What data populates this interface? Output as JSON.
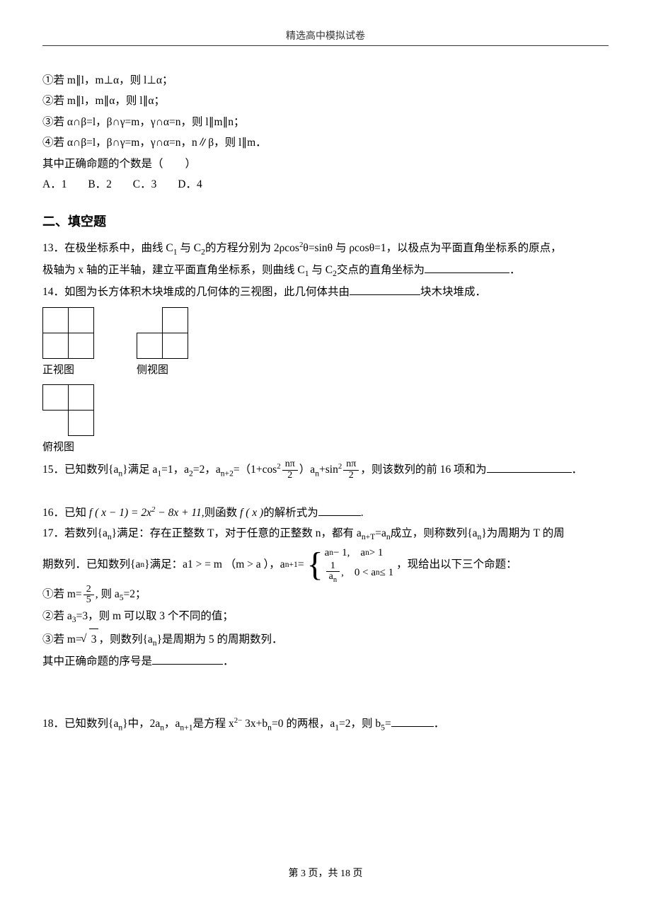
{
  "page": {
    "header": "精选高中模拟试卷",
    "footer_prefix": "第",
    "footer_page": "3",
    "footer_mid": "页，共",
    "footer_total": "18",
    "footer_suffix": "页"
  },
  "q12": {
    "s1": "①若 m∥l，m⊥α，则 l⊥α；",
    "s2": "②若 m∥l，m∥α，则 l∥α；",
    "s3": "③若 α∩β=l，β∩γ=m，γ∩α=n，则 l∥m∥n；",
    "s4": "④若 α∩β=l，β∩γ=m，γ∩α=n，n∥β，则 l∥m．",
    "s5": "其中正确命题的个数是（　　）",
    "optA": "A．1",
    "optB": "B．2",
    "optC": "C．3",
    "optD": "D．4"
  },
  "section2": "二、填空题",
  "q13": {
    "text_a": "13．在极坐标系中，曲线 C",
    "sub1": "1",
    "text_b": " 与 C",
    "sub2": "2",
    "text_c": "的方程分别为 2ρcos",
    "sup2a": "2",
    "text_d": "θ=sinθ 与 ρcosθ=1，以极点为平面直角坐标系的原点，",
    "line2a": "极轴为 x 轴的正半轴，建立平面直角坐标系，则曲线 C",
    "line2b": " 与 C",
    "line2c": "交点的直角坐标为",
    "tail": "．"
  },
  "q14": {
    "text": "14．如图为长方体积木块堆成的几何体的三视图，此几何体共由",
    "tail": "块木块堆成．",
    "label_front": "正视图",
    "label_side": "侧视图",
    "label_top": "俯视图",
    "front_grid": [
      [
        1,
        1
      ],
      [
        1,
        1
      ]
    ],
    "side_grid": [
      [
        0,
        1
      ],
      [
        1,
        1
      ]
    ],
    "top_grid": [
      [
        1,
        1
      ],
      [
        0,
        1
      ]
    ]
  },
  "q15": {
    "pre": "15．已知数列{a",
    "sub_n": "n",
    "mid1": "}满足 a",
    "s1": "1",
    "eq1": "=1，a",
    "s2": "2",
    "eq2": "=2，a",
    "s3": "n+2",
    "eq3": "=（1+cos",
    "sup2": "2",
    "frac1_num": "nπ",
    "frac1_den": "2",
    "mid2": "）a",
    "s4": "n",
    "mid3": "+sin",
    "frac2_num": "nπ",
    "frac2_den": "2",
    "tail": "，则该数列的前 16 项和为",
    "period": "．"
  },
  "q16": {
    "pre": "16．已知",
    "f1": "f ( x − 1) = 2x",
    "sup2": "2",
    "mid": " − 8x + 11,",
    "mid2": "则函数",
    "f2": "f ( x )",
    "tail": "的解析式为",
    "tail2": "."
  },
  "q17": {
    "l1a": "17．若数列{a",
    "sub_n": "n",
    "l1b": "}满足：存在正整数 T，对于任意的正整数 n，都有 a",
    "sub_nT": "n+T",
    "l1c": "=a",
    "l1d": "成立，则称数列{a",
    "l1e": "}为周期为 T 的周",
    "l2a": "期数列．已知数列{a",
    "l2b": "}满足：a1 > = m （m > a ），a",
    "sub_n1": "n+1",
    "l2c": "=",
    "case1_a": "a",
    "case1_b": " − 1,　a",
    "case1_c": " > 1",
    "case2_num": "1",
    "case2_den": "a",
    "case2_b": ",　0 < a",
    "case2_c": " ≤ 1",
    "l2d": "，现给出以下三个命题：",
    "s1a": "①若  m=",
    "s1_num": "2",
    "s1_den": "5",
    "s1b": ",  则 a",
    "s1_sub": "5",
    "s1c": "=2；",
    "s2": "②若  a",
    "s2_sub": "3",
    "s2b": "=3，则 m 可以取 3 个不同的值；",
    "s3a": "③若  m=",
    "s3_rad": "3",
    "s3b": "，则数列{a",
    "s3c": "}是周期为 5 的周期数列．",
    "tail": "其中正确命题的序号是",
    "period": "．"
  },
  "q18": {
    "a": "18．已知数列{a",
    "sub_n": "n",
    "b": "}中，2a",
    "c": "，a",
    "sub_n1": "n+1",
    "d": "是方程 x",
    "sup2": "2−",
    "e": " 3x+b",
    "f": "=0 的两根，a",
    "s1": "1",
    "g": "=2，则 b",
    "s5": "5",
    "h": "=",
    "tail": "．"
  }
}
